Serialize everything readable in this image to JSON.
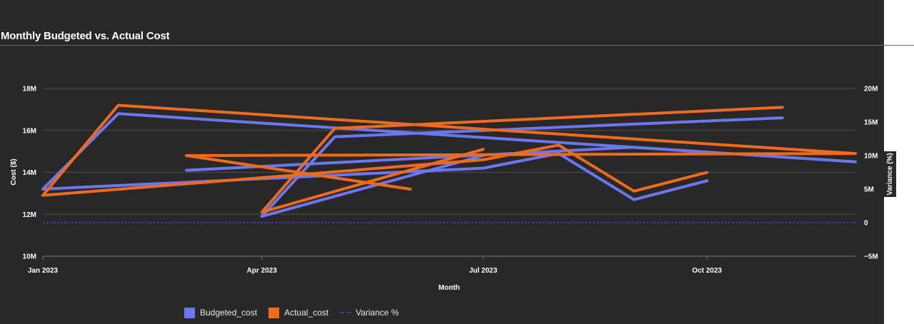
{
  "chart_data": {
    "type": "line",
    "title": "Monthly Budgeted vs. Actual Cost",
    "xlabel": "Month",
    "ylabel": "Cost ($)",
    "y2label": "Variance (%)",
    "xlim": [
      "2023-01-01",
      "2023-12-01"
    ],
    "ylim": [
      10000000,
      18000000
    ],
    "y2lim": [
      -5000000,
      20000000
    ],
    "x_ticks": [
      {
        "date": "2023-01-01",
        "label": "Jan 2023"
      },
      {
        "date": "2023-04-01",
        "label": "Apr 2023"
      },
      {
        "date": "2023-07-01",
        "label": "Jul 2023"
      },
      {
        "date": "2023-10-01",
        "label": "Oct 2023"
      }
    ],
    "y_ticks": [
      {
        "value": 10000000,
        "label": "10M"
      },
      {
        "value": 12000000,
        "label": "12M"
      },
      {
        "value": 14000000,
        "label": "14M"
      },
      {
        "value": 16000000,
        "label": "16M"
      },
      {
        "value": 18000000,
        "label": "18M"
      }
    ],
    "y2_ticks": [
      {
        "value": -5000000,
        "label": "−5M"
      },
      {
        "value": 0,
        "label": "0"
      },
      {
        "value": 5000000,
        "label": "5M"
      },
      {
        "value": 10000000,
        "label": "10M"
      },
      {
        "value": 15000000,
        "label": "15M"
      },
      {
        "value": 20000000,
        "label": "20M"
      }
    ],
    "grid": true,
    "legend_position": "bottom",
    "series": [
      {
        "name": "Budgeted_cost",
        "color": "#6b77f0",
        "axis": "left",
        "x": [
          "2023-01-01",
          "2023-02-01",
          "2023-12-01",
          "2023-09-01",
          "2023-03-01",
          "2023-06-01",
          "2023-07-01",
          "2023-04-01",
          "2023-05-01",
          "2023-11-01",
          "2023-10-01",
          "2023-09-01",
          "2023-08-01",
          "2023-07-01",
          "2023-01-01"
        ],
        "y": [
          13200000,
          16800000,
          14500000,
          15200000,
          14100000,
          12700000,
          14800000,
          11900000,
          15700000,
          16600000,
          13600000,
          12700000,
          14900000,
          14200000,
          13200000
        ],
        "segment_breaks": [
          5,
          6,
          10
        ]
      },
      {
        "name": "Actual_cost",
        "color": "#f06a1c",
        "axis": "left",
        "x": [
          "2023-01-01",
          "2023-02-01",
          "2023-12-01",
          "2023-03-01",
          "2023-06-01",
          "2023-07-01",
          "2023-04-01",
          "2023-05-01",
          "2023-11-01",
          "2023-10-01",
          "2023-09-01",
          "2023-08-01",
          "2023-07-01",
          "2023-01-01"
        ],
        "y": [
          12900000,
          17200000,
          14900000,
          14800000,
          13200000,
          15100000,
          12100000,
          16100000,
          17100000,
          14000000,
          13100000,
          15300000,
          14600000,
          12900000
        ],
        "segment_breaks": [
          5,
          9
        ]
      },
      {
        "name": "Variance %",
        "color": "#3a3aa8",
        "axis": "right",
        "style": "dashed",
        "x": [
          "2023-01-01",
          "2023-12-01"
        ],
        "y": [
          0,
          0
        ]
      }
    ]
  }
}
